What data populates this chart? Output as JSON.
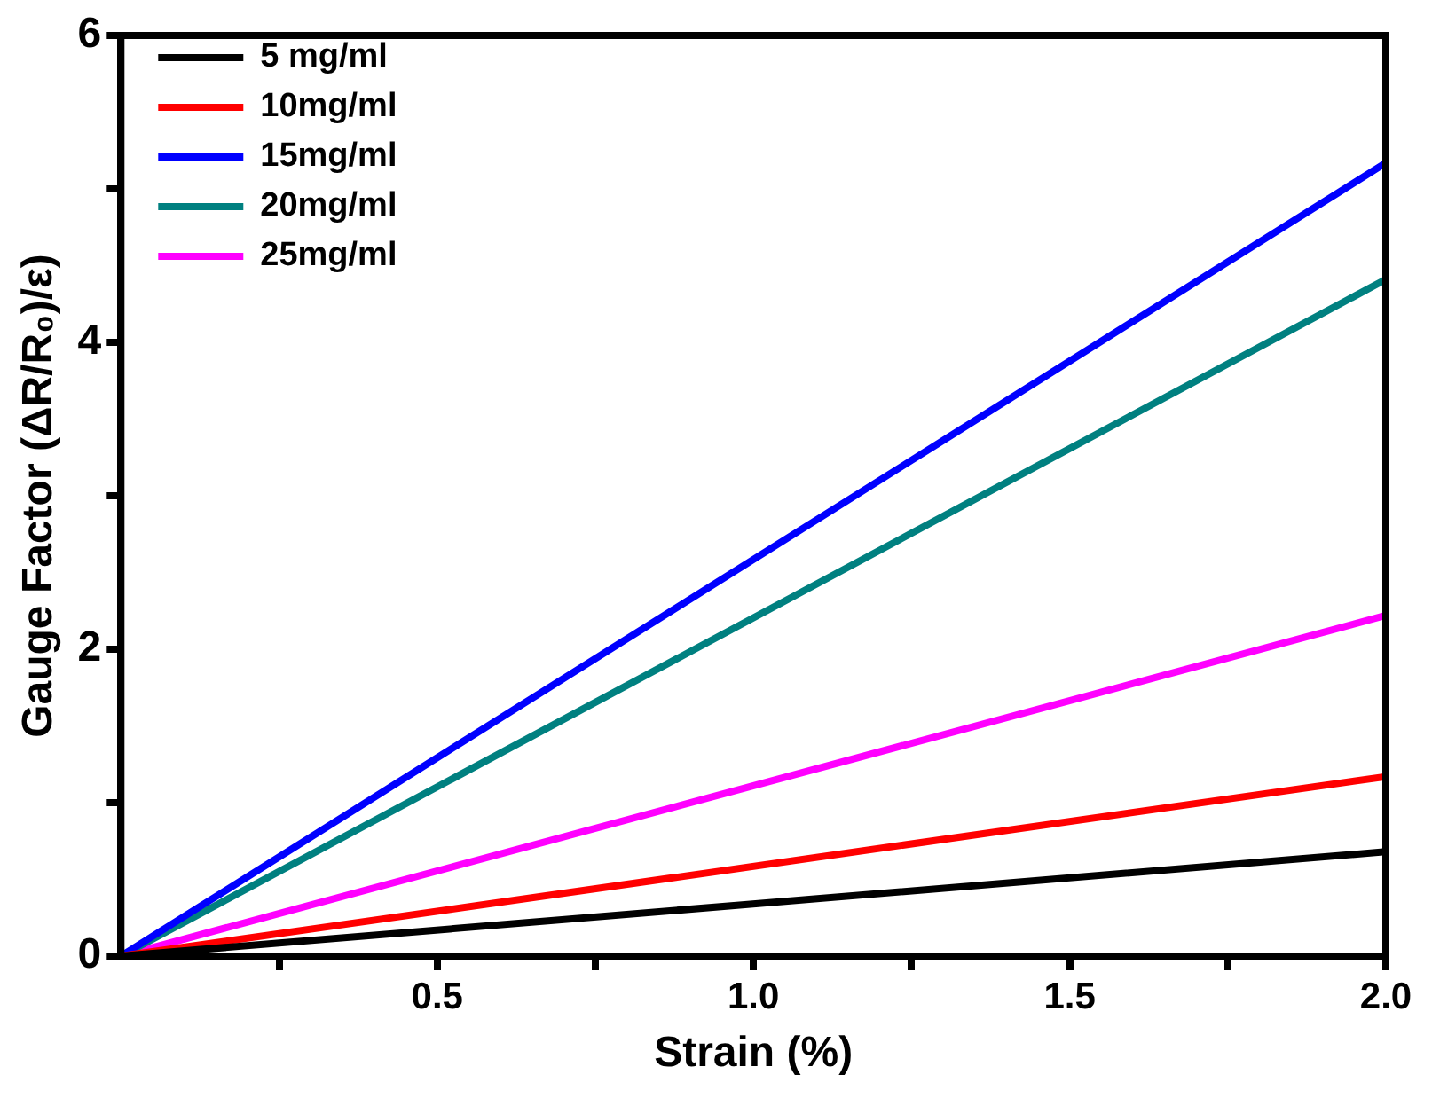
{
  "chart_data": {
    "type": "line",
    "xlabel": "Strain (%)",
    "ylabel": "Gauge Factor (ΔR/R₀)/ε)",
    "x": [
      0,
      2
    ],
    "series": [
      {
        "name": "5 mg/ml",
        "color": "#000000",
        "values": [
          0,
          0.68
        ]
      },
      {
        "name": "10mg/ml",
        "color": "#ff0000",
        "values": [
          0,
          1.17
        ]
      },
      {
        "name": "15mg/ml",
        "color": "#0000ff",
        "values": [
          0,
          5.17
        ]
      },
      {
        "name": "20mg/ml",
        "color": "#008080",
        "values": [
          0,
          4.41
        ]
      },
      {
        "name": "25mg/ml",
        "color": "#ff00ff",
        "values": [
          0,
          2.22
        ]
      }
    ],
    "xlim": [
      0,
      2
    ],
    "xticks": [
      {
        "value": 0.25,
        "label": null
      },
      {
        "value": 0.5,
        "label": "0.5"
      },
      {
        "value": 0.75,
        "label": null
      },
      {
        "value": 1,
        "label": "1.0"
      },
      {
        "value": 1.25,
        "label": null
      },
      {
        "value": 1.5,
        "label": "1.5"
      },
      {
        "value": 1.75,
        "label": null
      },
      {
        "value": 2,
        "label": "2.0"
      }
    ],
    "ylim": [
      0,
      6
    ],
    "yticks": [
      0,
      {
        "value": 1,
        "label": null
      },
      2,
      {
        "value": 3,
        "label": null
      },
      4,
      {
        "value": 5,
        "label": null
      },
      6
    ],
    "legend": "top left",
    "grid": false,
    "marker": "none",
    "line_style": "solid"
  }
}
